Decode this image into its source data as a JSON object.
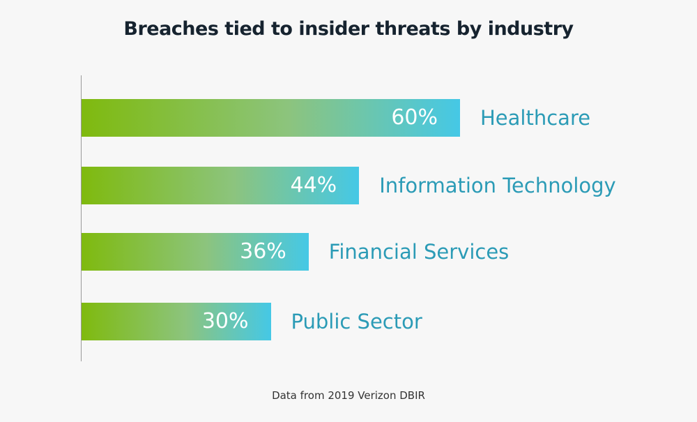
{
  "chart_data": {
    "type": "bar",
    "orientation": "horizontal",
    "title": "Breaches tied to insider threats by industry",
    "categories": [
      "Healthcare",
      "Information Technology",
      "Financial Services",
      "Public Sector"
    ],
    "values": [
      60,
      44,
      36,
      30
    ],
    "value_labels": [
      "60%",
      "44%",
      "36%",
      "30%"
    ],
    "unit": "%",
    "xlim": [
      0,
      60
    ],
    "grid": false,
    "source": "Data from 2019 Verizon DBIR",
    "colors": {
      "gradient_start": "#7fba0e",
      "gradient_mid": "#8cc47e",
      "gradient_end": "#45c8e6",
      "label": "#2b9bb6",
      "title": "#16232f"
    }
  }
}
